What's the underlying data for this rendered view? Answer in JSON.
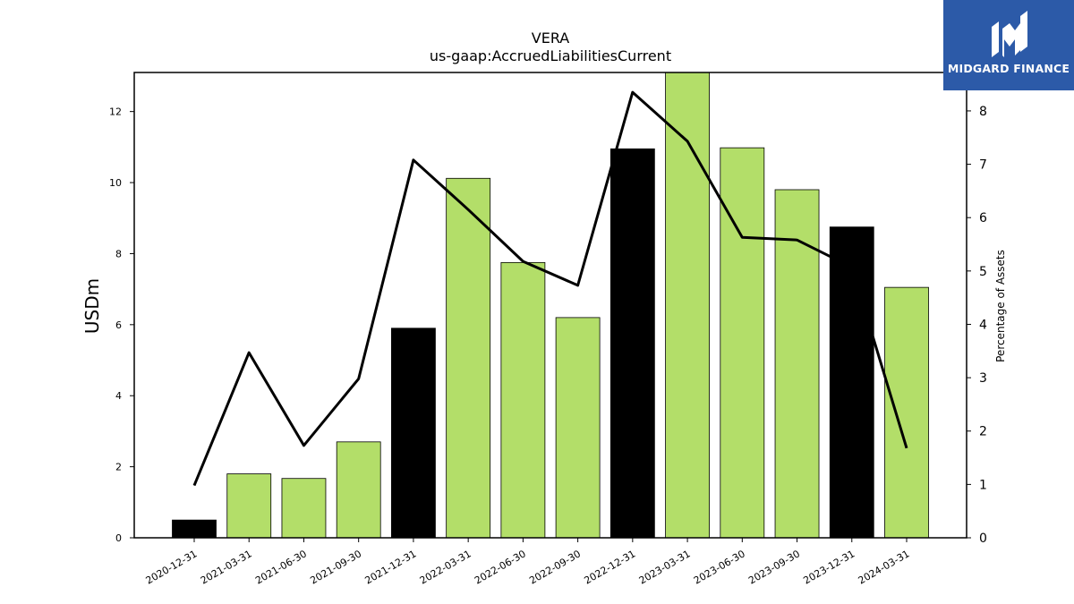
{
  "chart_data": {
    "type": "bar",
    "title": "VERA",
    "subtitle": "us-gaap:AccruedLiabilitiesCurrent",
    "ylabel": "USDm",
    "y2label": "Percentage of Assets",
    "categories": [
      "2020-12-31",
      "2021-03-31",
      "2021-06-30",
      "2021-09-30",
      "2021-12-31",
      "2022-03-31",
      "2022-06-30",
      "2022-09-30",
      "2022-12-31",
      "2023-03-31",
      "2023-06-30",
      "2023-09-30",
      "2023-12-31",
      "2024-03-31"
    ],
    "series": [
      {
        "type": "bar",
        "axis": "left",
        "values": [
          0.5,
          1.8,
          1.67,
          2.7,
          5.9,
          10.12,
          7.75,
          6.2,
          10.95,
          13.1,
          10.98,
          9.8,
          8.75,
          7.05
        ],
        "colors": [
          "#000000",
          "#b3de69",
          "#b3de69",
          "#b3de69",
          "#000000",
          "#b3de69",
          "#b3de69",
          "#b3de69",
          "#000000",
          "#b3de69",
          "#b3de69",
          "#b3de69",
          "#000000",
          "#b3de69"
        ]
      },
      {
        "type": "line",
        "axis": "right",
        "color": "#000000",
        "values": [
          0.98,
          3.47,
          1.73,
          2.98,
          7.08,
          6.15,
          5.18,
          4.73,
          8.35,
          7.43,
          5.63,
          5.58,
          5.07,
          1.68
        ]
      }
    ],
    "ylim": [
      0,
      13.1
    ],
    "yticks": [
      0,
      2,
      4,
      6,
      8,
      10,
      12
    ],
    "y2lim": [
      0,
      8.72
    ],
    "y2ticks": [
      0,
      1,
      2,
      3,
      4,
      5,
      6,
      7,
      8
    ],
    "grid": false,
    "legend": "none"
  },
  "logo": {
    "text": "MIDGARD FINANCE",
    "background": "#2c5aa8"
  }
}
